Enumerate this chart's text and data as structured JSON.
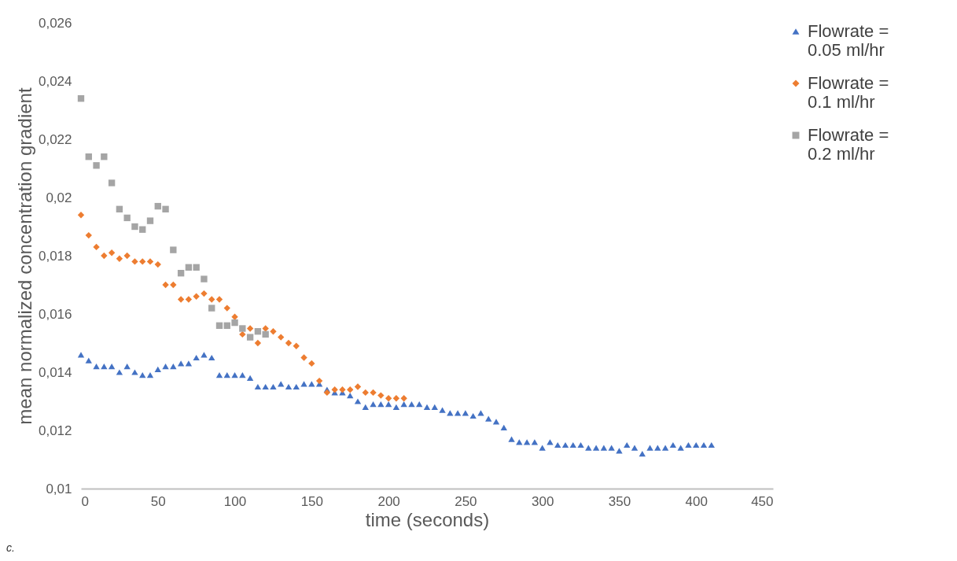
{
  "chart_data": {
    "type": "scatter",
    "xlabel": "time (seconds)",
    "ylabel": "mean normalized concentration gradient",
    "xlim": [
      0,
      450
    ],
    "xticks": [
      0,
      50,
      100,
      150,
      200,
      250,
      300,
      350,
      400,
      450
    ],
    "ylim": [
      0.01,
      0.026
    ],
    "yticks": [
      {
        "value": 0.01,
        "label": "0,01"
      },
      {
        "value": 0.012,
        "label": "0,012"
      },
      {
        "value": 0.014,
        "label": "0,014"
      },
      {
        "value": 0.016,
        "label": "0,016"
      },
      {
        "value": 0.018,
        "label": "0,018"
      },
      {
        "value": 0.02,
        "label": "0,02"
      },
      {
        "value": 0.022,
        "label": "0,022"
      },
      {
        "value": 0.024,
        "label": "0,024"
      },
      {
        "value": 0.026,
        "label": "0,026"
      }
    ],
    "grid": false,
    "legend": "right",
    "annotations": [
      "c."
    ],
    "series": [
      {
        "name": "Flowrate = 0.05 ml/hr",
        "color": "#4472c4",
        "marker": "triangle",
        "x": [
          0,
          5,
          10,
          15,
          20,
          25,
          30,
          35,
          40,
          45,
          50,
          55,
          60,
          65,
          70,
          75,
          80,
          85,
          90,
          95,
          100,
          105,
          110,
          115,
          120,
          125,
          130,
          135,
          140,
          145,
          150,
          155,
          160,
          165,
          170,
          175,
          180,
          185,
          190,
          195,
          200,
          205,
          210,
          215,
          220,
          225,
          230,
          235,
          240,
          245,
          250,
          255,
          260,
          265,
          270,
          275,
          280,
          285,
          290,
          295,
          300,
          305,
          310,
          315,
          320,
          325,
          330,
          335,
          340,
          345,
          350,
          355,
          360,
          365,
          370,
          375,
          380,
          385,
          390,
          395,
          400,
          405,
          410
        ],
        "values": [
          0.0146,
          0.0144,
          0.0142,
          0.0142,
          0.0142,
          0.014,
          0.0142,
          0.014,
          0.0139,
          0.0139,
          0.0141,
          0.0142,
          0.0142,
          0.0143,
          0.0143,
          0.0145,
          0.0146,
          0.0145,
          0.0139,
          0.0139,
          0.0139,
          0.0139,
          0.0138,
          0.0135,
          0.0135,
          0.0135,
          0.0136,
          0.0135,
          0.0135,
          0.0136,
          0.0136,
          0.0136,
          0.0134,
          0.0133,
          0.0133,
          0.0132,
          0.013,
          0.0128,
          0.0129,
          0.0129,
          0.0129,
          0.0128,
          0.0129,
          0.0129,
          0.0129,
          0.0128,
          0.0128,
          0.0127,
          0.0126,
          0.0126,
          0.0126,
          0.0125,
          0.0126,
          0.0124,
          0.0123,
          0.0121,
          0.0117,
          0.0116,
          0.0116,
          0.0116,
          0.0114,
          0.0116,
          0.0115,
          0.0115,
          0.0115,
          0.0115,
          0.0114,
          0.0114,
          0.0114,
          0.0114,
          0.0113,
          0.0115,
          0.0114,
          0.0112,
          0.0114,
          0.0114,
          0.0114,
          0.0115,
          0.0114,
          0.0115,
          0.0115,
          0.0115,
          0.0115
        ]
      },
      {
        "name": "Flowrate = 0.1 ml/hr",
        "color": "#ed7d31",
        "marker": "diamond",
        "x": [
          0,
          5,
          10,
          15,
          20,
          25,
          30,
          35,
          40,
          45,
          50,
          55,
          60,
          65,
          70,
          75,
          80,
          85,
          90,
          95,
          100,
          105,
          110,
          115,
          120,
          125,
          130,
          135,
          140,
          145,
          150,
          155,
          160,
          165,
          170,
          175,
          180,
          185,
          190,
          195,
          200,
          205,
          210
        ],
        "values": [
          0.0194,
          0.0187,
          0.0183,
          0.018,
          0.0181,
          0.0179,
          0.018,
          0.0178,
          0.0178,
          0.0178,
          0.0177,
          0.017,
          0.017,
          0.0165,
          0.0165,
          0.0166,
          0.0167,
          0.0165,
          0.0165,
          0.0162,
          0.0159,
          0.0153,
          0.0155,
          0.015,
          0.0155,
          0.0154,
          0.0152,
          0.015,
          0.0149,
          0.0145,
          0.0143,
          0.0137,
          0.0133,
          0.0134,
          0.0134,
          0.0134,
          0.0135,
          0.0133,
          0.0133,
          0.0132,
          0.0131,
          0.0131,
          0.0131
        ]
      },
      {
        "name": "Flowrate = 0.2 ml/hr",
        "color": "#a5a5a5",
        "marker": "square",
        "x": [
          0,
          5,
          10,
          15,
          20,
          25,
          30,
          35,
          40,
          45,
          50,
          55,
          60,
          65,
          70,
          75,
          80,
          85,
          90,
          95,
          100,
          105,
          110,
          115,
          120
        ],
        "values": [
          0.0234,
          0.0214,
          0.0211,
          0.0214,
          0.0205,
          0.0196,
          0.0193,
          0.019,
          0.0189,
          0.0192,
          0.0197,
          0.0196,
          0.0182,
          0.0174,
          0.0176,
          0.0176,
          0.0172,
          0.0162,
          0.0156,
          0.0156,
          0.0157,
          0.0155,
          0.0152,
          0.0154,
          0.0153
        ]
      }
    ]
  }
}
